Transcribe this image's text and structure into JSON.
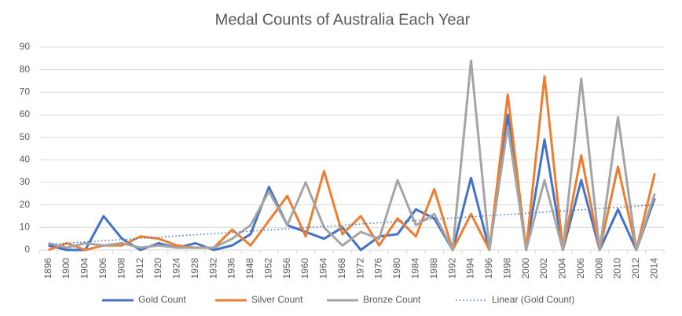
{
  "chart_data": {
    "type": "line",
    "title": "Medal Counts of Australia Each Year",
    "categories": [
      "1896",
      "1900",
      "1904",
      "1906",
      "1908",
      "1912",
      "1920",
      "1924",
      "1928",
      "1932",
      "1936",
      "1948",
      "1952",
      "1956",
      "1960",
      "1964",
      "1968",
      "1972",
      "1976",
      "1980",
      "1984",
      "1988",
      "1992",
      "1994",
      "1996",
      "1998",
      "2000",
      "2002",
      "2004",
      "2006",
      "2008",
      "2010",
      "2012",
      "2014"
    ],
    "series": [
      {
        "name": "Gold Count",
        "color": "#4472c4",
        "values": [
          2,
          0,
          0,
          15,
          5,
          0,
          3,
          1,
          3,
          0,
          2,
          7,
          28,
          11,
          8,
          5,
          10,
          0,
          6,
          7,
          18,
          14,
          0,
          32,
          0,
          60,
          0,
          49,
          0,
          31,
          0,
          18,
          0,
          23
        ]
      },
      {
        "name": "Silver Count",
        "color": "#ed7d31",
        "values": [
          0,
          3,
          0,
          2,
          2,
          6,
          5,
          2,
          1,
          1,
          9,
          2,
          13,
          24,
          6,
          35,
          7,
          15,
          2,
          14,
          6,
          27,
          0,
          16,
          0,
          69,
          0,
          77,
          0,
          42,
          0,
          37,
          0,
          34
        ]
      },
      {
        "name": "Bronze Count",
        "color": "#a5a5a5",
        "values": [
          3,
          1,
          3,
          2,
          3,
          1,
          2,
          1,
          1,
          1,
          5,
          11,
          26,
          11,
          30,
          10,
          2,
          8,
          5,
          31,
          11,
          16,
          0,
          84,
          0,
          55,
          0,
          31,
          0,
          76,
          0,
          59,
          0,
          25
        ]
      }
    ],
    "trendline": {
      "name": "Linear (Gold Count)",
      "color": "#4472c4",
      "values": [
        2.5,
        20
      ]
    },
    "ylim": [
      0,
      90
    ],
    "yticks": [
      0,
      10,
      20,
      30,
      40,
      50,
      60,
      70,
      80,
      90
    ],
    "grid": true,
    "legend": "bottom"
  }
}
